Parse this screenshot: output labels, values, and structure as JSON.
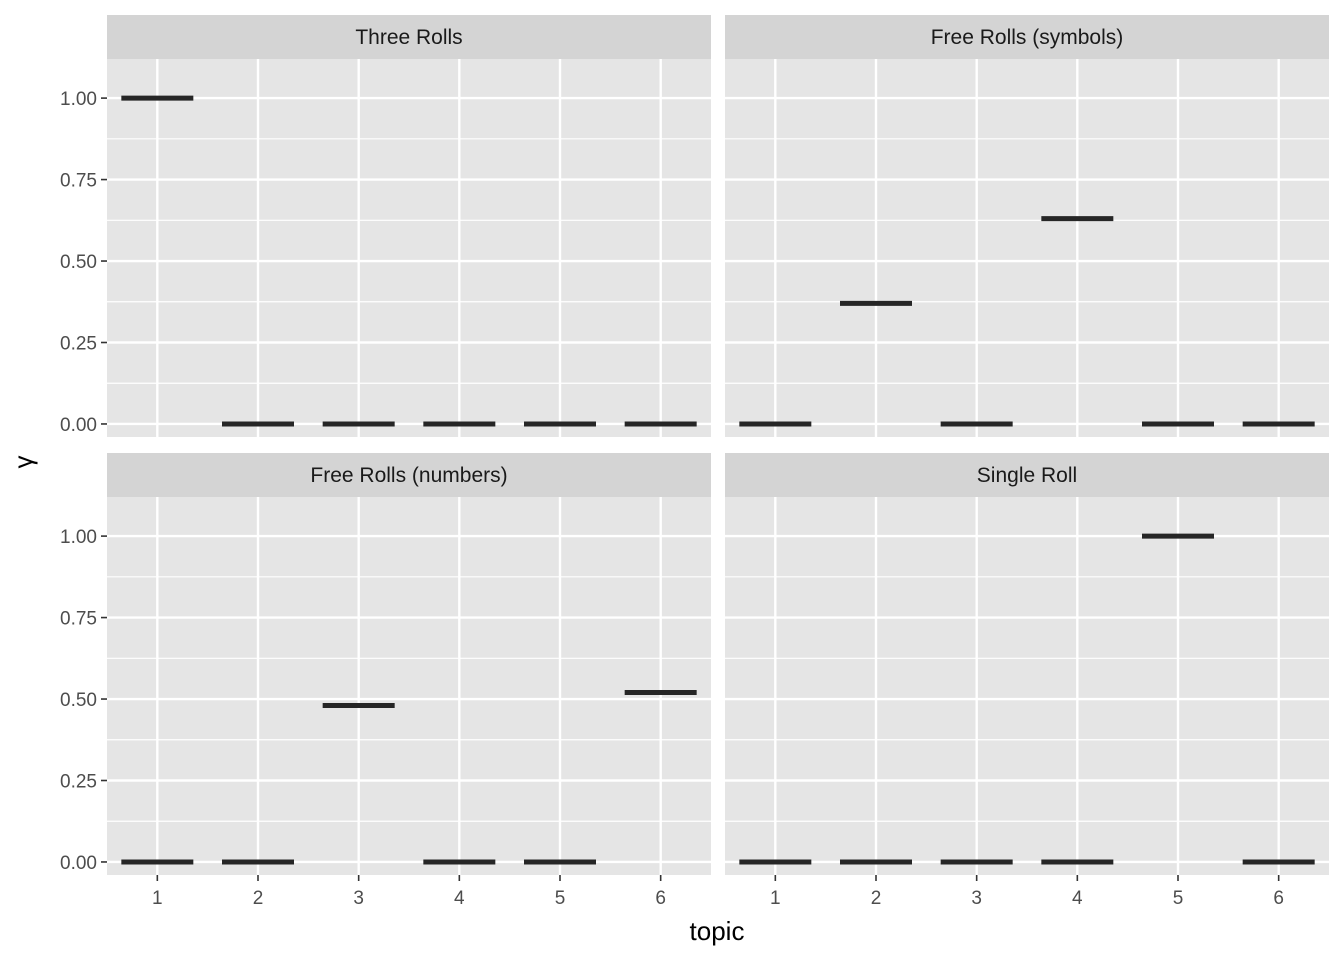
{
  "chart_data": {
    "type": "faceted-crossbar",
    "xlabel": "topic",
    "ylabel": "γ",
    "x_categories": [
      "1",
      "2",
      "3",
      "4",
      "5",
      "6"
    ],
    "y_ticks": [
      "0.00",
      "0.25",
      "0.50",
      "0.75",
      "1.00"
    ],
    "ylim": [
      -0.04,
      1.12
    ],
    "grid": true,
    "colors": {
      "panel_bg": "#e5e5e5",
      "strip_bg": "#d4d4d4",
      "grid": "#ffffff",
      "mark": "#262626"
    },
    "facets": [
      {
        "title": "Three Rolls",
        "values": [
          1.0,
          0.0,
          0.0,
          0.0,
          0.0,
          0.0
        ]
      },
      {
        "title": "Free Rolls (symbols)",
        "values": [
          0.0,
          0.37,
          0.0,
          0.63,
          0.0,
          0.0
        ]
      },
      {
        "title": "Free Rolls (numbers)",
        "values": [
          0.0,
          0.0,
          0.48,
          0.0,
          0.0,
          0.52
        ]
      },
      {
        "title": "Single Roll",
        "values": [
          0.0,
          0.0,
          0.0,
          0.0,
          1.0,
          0.0
        ]
      }
    ]
  }
}
